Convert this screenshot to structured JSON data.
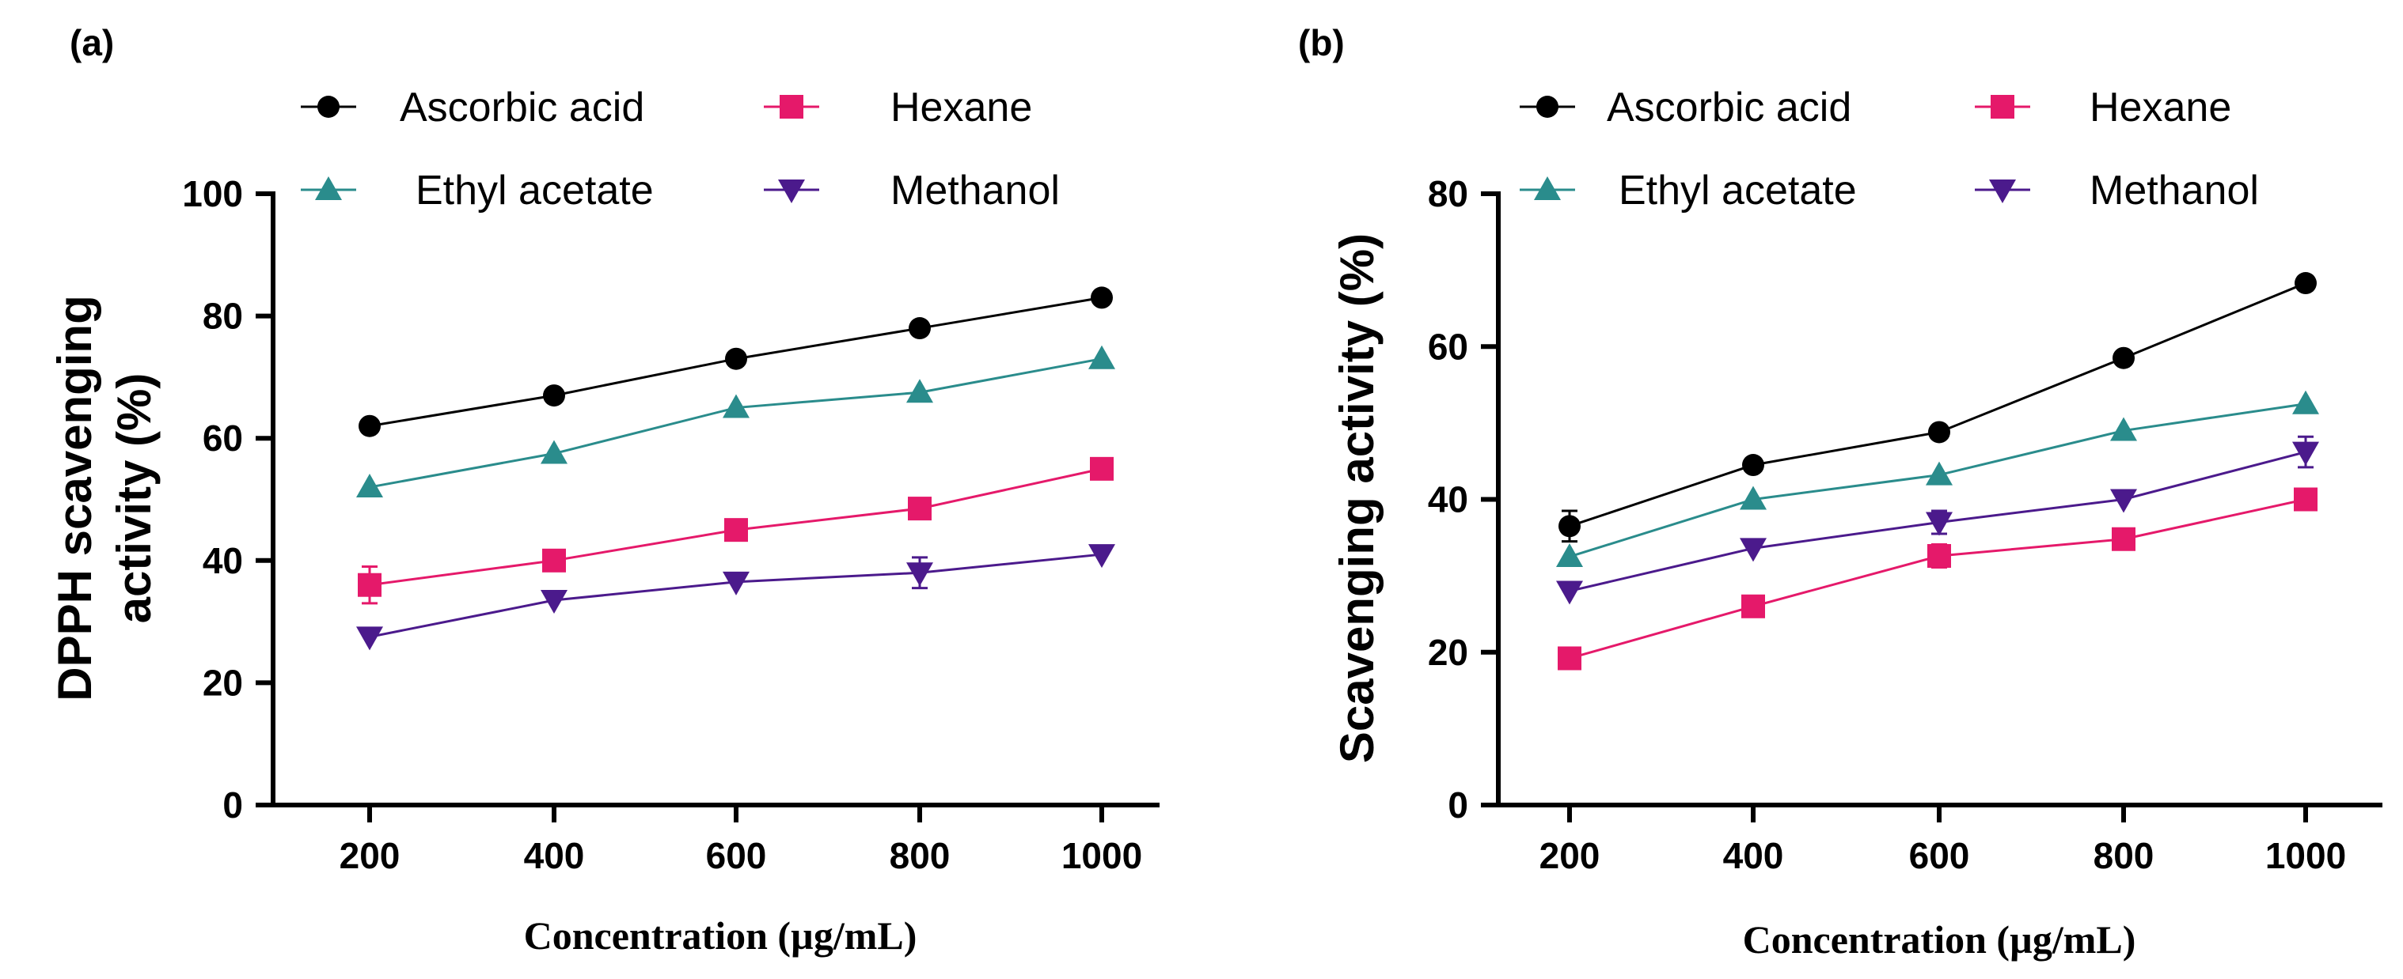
{
  "figure": {
    "panels": [
      "(a)",
      "(b)"
    ]
  },
  "chart_data": [
    {
      "type": "line",
      "panel_label": "(a)",
      "title": "",
      "xlabel": "Concentration  (µg/mL)",
      "ylabel": "DPPH scavenging activity (%)",
      "ylabel_lines": [
        "DPPH scavenging",
        "activity (%)"
      ],
      "categories": [
        "200",
        "400",
        "600",
        "800",
        "1000"
      ],
      "x": [
        200,
        400,
        600,
        800,
        1000
      ],
      "ylim": [
        0,
        100
      ],
      "yticks": [
        "0",
        "20",
        "40",
        "60",
        "80",
        "100"
      ],
      "legend_position": "top",
      "series": [
        {
          "name": "Ascorbic acid",
          "marker": "circle",
          "color": "#000000",
          "values": [
            62,
            67,
            73,
            78,
            83
          ],
          "errors": [
            1.2,
            1,
            1,
            1,
            1
          ]
        },
        {
          "name": "Hexane",
          "marker": "square",
          "color": "#E5196A",
          "values": [
            36,
            40,
            45,
            48.5,
            55
          ],
          "errors": [
            3,
            1.2,
            1,
            1,
            1
          ]
        },
        {
          "name": "Ethyl acetate",
          "marker": "triangle-up",
          "color": "#2A8C8C",
          "values": [
            52,
            57.5,
            65,
            67.5,
            73
          ],
          "errors": [
            1,
            1,
            1,
            1,
            1
          ]
        },
        {
          "name": "Methanol",
          "marker": "triangle-down",
          "color": "#4B1A8C",
          "values": [
            27.5,
            33.5,
            36.5,
            38,
            41
          ],
          "errors": [
            1,
            1,
            1,
            2.5,
            1
          ]
        }
      ]
    },
    {
      "type": "line",
      "panel_label": "(b)",
      "title": "",
      "xlabel": "Concentration  (µg/mL)",
      "ylabel": "Scavenging activity (%)",
      "ylabel_lines": [
        "Scavenging activity (%)"
      ],
      "categories": [
        "200",
        "400",
        "600",
        "800",
        "1000"
      ],
      "x": [
        200,
        400,
        600,
        800,
        1000
      ],
      "ylim": [
        0,
        80
      ],
      "yticks": [
        "0",
        "20",
        "40",
        "60",
        "80"
      ],
      "legend_position": "top",
      "series": [
        {
          "name": "Ascorbic acid",
          "marker": "circle",
          "color": "#000000",
          "values": [
            36.5,
            44.5,
            48.8,
            58.5,
            68.3
          ],
          "errors": [
            2,
            1,
            1,
            1,
            1
          ]
        },
        {
          "name": "Hexane",
          "marker": "square",
          "color": "#E5196A",
          "values": [
            19.2,
            26,
            32.6,
            34.8,
            40
          ],
          "errors": [
            1,
            1,
            1.5,
            1,
            1
          ]
        },
        {
          "name": "Ethyl acetate",
          "marker": "triangle-up",
          "color": "#2A8C8C",
          "values": [
            32.5,
            40,
            43.2,
            49,
            52.5
          ],
          "errors": [
            1,
            1,
            1,
            1,
            1
          ]
        },
        {
          "name": "Methanol",
          "marker": "triangle-down",
          "color": "#4B1A8C",
          "values": [
            28,
            33.6,
            37,
            40,
            46.2
          ],
          "errors": [
            1,
            1,
            1.5,
            1,
            2
          ]
        }
      ]
    }
  ]
}
